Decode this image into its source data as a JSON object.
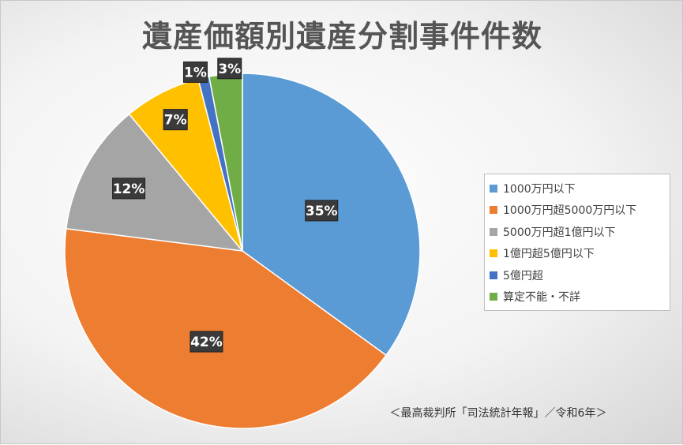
{
  "chart_data": {
    "type": "pie",
    "title": "遺産価額別遺産分割事件件数",
    "categories": [
      "1000万円以下",
      "1000万円超5000万円以下",
      "5000万円超1億円以下",
      "1億円超5億円以下",
      "5億円超",
      "算定不能・不詳"
    ],
    "values": [
      35,
      42,
      12,
      7,
      1,
      3
    ],
    "unit": "%",
    "data_labels": [
      "35%",
      "42%",
      "12%",
      "7%",
      "1%",
      "3%"
    ],
    "colors": [
      "#5b9bd5",
      "#ed7d31",
      "#a5a5a5",
      "#ffc000",
      "#4472c4",
      "#70ad47"
    ],
    "legend_position": "right",
    "start_angle_deg": 0,
    "direction": "clockwise"
  },
  "legend_labels": [
    "1000万円以下",
    "1000万円超5000万円以下",
    "5000万円超1億円以下",
    "1億円超5億円以下",
    "5億円超",
    "算定不能・不詳"
  ],
  "source_note": "＜最高裁判所「司法統計年報」／令和6年＞"
}
